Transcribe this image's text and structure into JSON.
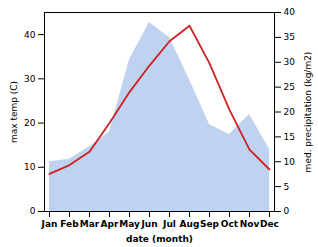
{
  "chart_data": {
    "type": "line",
    "xlabel": "date (month)",
    "ylabel": "max temp (C)",
    "y2label": "med. precipitation (kg/m2)",
    "categories": [
      "Jan",
      "Feb",
      "Mar",
      "Apr",
      "May",
      "Jun",
      "Jul",
      "Aug",
      "Sep",
      "Oct",
      "Nov",
      "Dec"
    ],
    "series": [
      {
        "type": "line",
        "color": "#cc2222",
        "values": [
          8.5,
          10.5,
          13.5,
          20.0,
          27.0,
          33.0,
          38.5,
          42.0,
          33.5,
          23.0,
          14.0,
          9.5
        ]
      },
      {
        "type": "area",
        "axis": "y2",
        "color": "#b8cef0",
        "values": [
          10.0,
          10.5,
          13.0,
          16.0,
          30.5,
          38.0,
          35.0,
          26.5,
          17.5,
          15.5,
          19.5,
          12.5
        ]
      }
    ],
    "ylim": [
      0,
      45
    ],
    "yticks": [
      0,
      10,
      20,
      30,
      40
    ],
    "y2lim": [
      0,
      40
    ],
    "y2ticks": [
      0,
      5,
      10,
      15,
      20,
      25,
      30,
      35,
      40
    ],
    "grid": false
  }
}
